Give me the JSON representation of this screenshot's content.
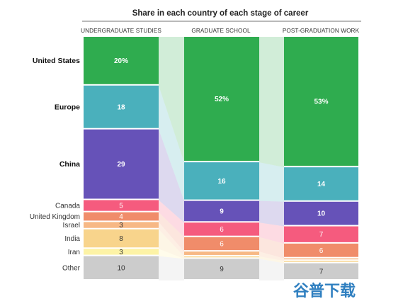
{
  "chart_data": {
    "type": "stacked-bar",
    "title": "Share in each country of each stage of career",
    "stages": [
      "UNDERGRADUATE STUDIES",
      "GRADUATE SCHOOL",
      "POST-GRADUATION WORK"
    ],
    "legend_position": "left",
    "series": [
      {
        "name": "United States",
        "color": "#2fac4f",
        "values": [
          20,
          52,
          53
        ],
        "labels": [
          "20%",
          "52%",
          "53%"
        ],
        "emphasis": true,
        "label_color": "#ffffff"
      },
      {
        "name": "Europe",
        "color": "#4ab0bc",
        "values": [
          18,
          16,
          14
        ],
        "labels": [
          "18",
          "16",
          "14"
        ],
        "emphasis": true,
        "label_color": "#ffffff"
      },
      {
        "name": "China",
        "color": "#6652b8",
        "values": [
          29,
          9,
          10
        ],
        "labels": [
          "29",
          "9",
          "10"
        ],
        "emphasis": true,
        "label_color": "#ffffff"
      },
      {
        "name": "Canada",
        "color": "#f55b7e",
        "values": [
          5,
          6,
          7
        ],
        "labels": [
          "5",
          "6",
          "7"
        ],
        "emphasis": false,
        "label_color": "#ffffff"
      },
      {
        "name": "United Kingdom",
        "color": "#f08c6a",
        "values": [
          4,
          6,
          6
        ],
        "labels": [
          "4",
          "6",
          "6"
        ],
        "emphasis": false,
        "label_color": "#ffffff"
      },
      {
        "name": "Israel",
        "color": "#f7b885",
        "values": [
          3,
          2,
          1
        ],
        "labels": [
          "3",
          "",
          ""
        ],
        "emphasis": false,
        "label_color": "#333333"
      },
      {
        "name": "India",
        "color": "#f8d48c",
        "values": [
          8,
          1,
          1
        ],
        "labels": [
          "8",
          "",
          ""
        ],
        "emphasis": false,
        "label_color": "#333333"
      },
      {
        "name": "Iran",
        "color": "#fdf3a6",
        "values": [
          3,
          0,
          0
        ],
        "labels": [
          "3",
          "",
          ""
        ],
        "emphasis": false,
        "label_color": "#333333"
      },
      {
        "name": "Other",
        "color": "#cccccc",
        "values": [
          10,
          9,
          7
        ],
        "labels": [
          "10",
          "9",
          "7"
        ],
        "emphasis": false,
        "label_color": "#333333"
      }
    ]
  },
  "watermark": "谷普下载"
}
